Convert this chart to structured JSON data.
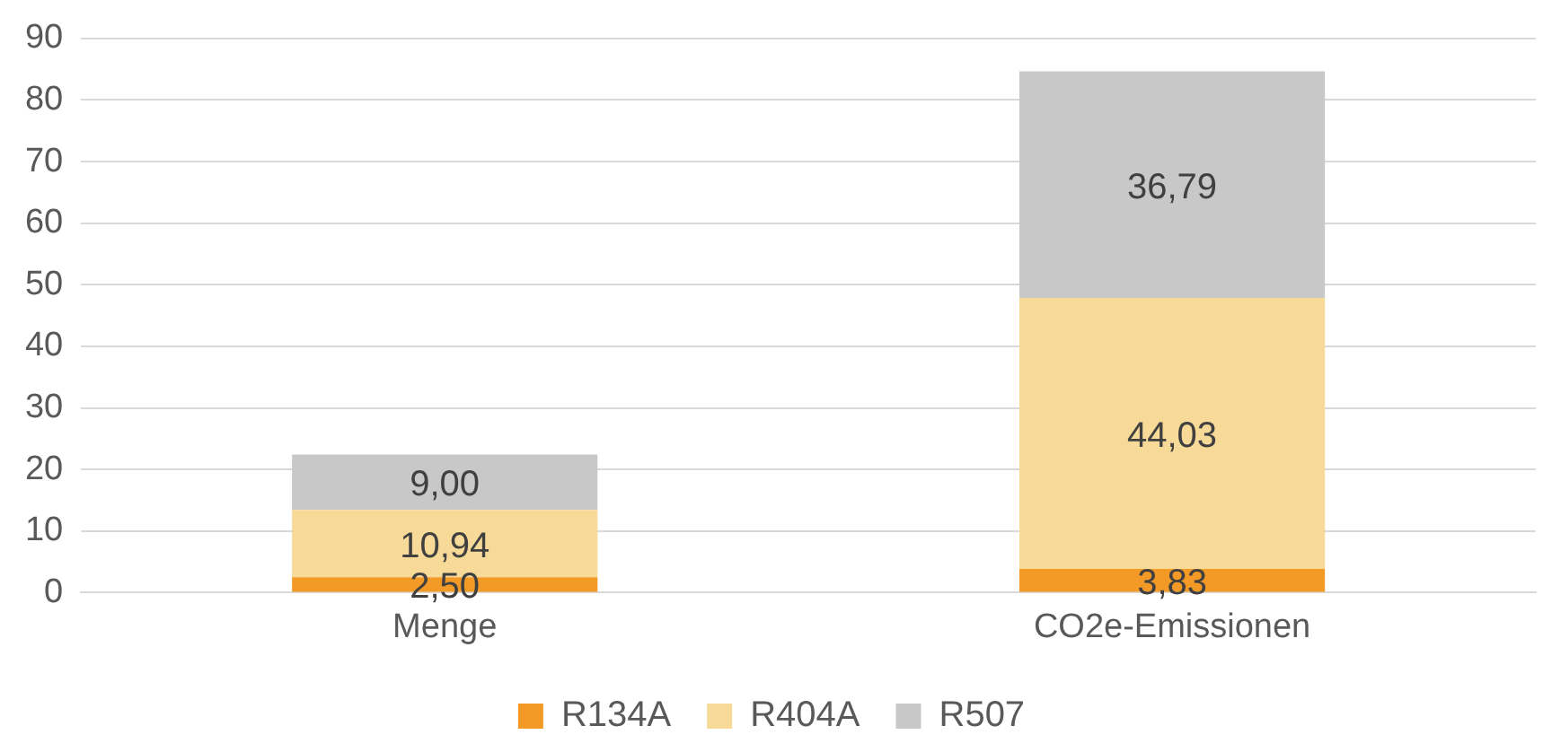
{
  "chart_data": {
    "type": "bar",
    "stacked": true,
    "categories": [
      "Menge",
      "CO2e-Emissionen"
    ],
    "series": [
      {
        "name": "R134A",
        "color": "#f39a26",
        "values": [
          2.5,
          3.83
        ],
        "value_labels": [
          "2,50",
          "3,83"
        ]
      },
      {
        "name": "R404A",
        "color": "#f7da97",
        "values": [
          10.94,
          44.03
        ],
        "value_labels": [
          "10,94",
          "44,03"
        ]
      },
      {
        "name": "R507",
        "color": "#c8c8c8",
        "values": [
          9,
          36.79
        ],
        "value_labels": [
          "9,00",
          "36,79"
        ]
      }
    ],
    "ylim": [
      0,
      90
    ],
    "yticks": [
      0,
      10,
      20,
      30,
      40,
      50,
      60,
      70,
      80,
      90
    ],
    "grid": "y",
    "legend": "bottom"
  }
}
